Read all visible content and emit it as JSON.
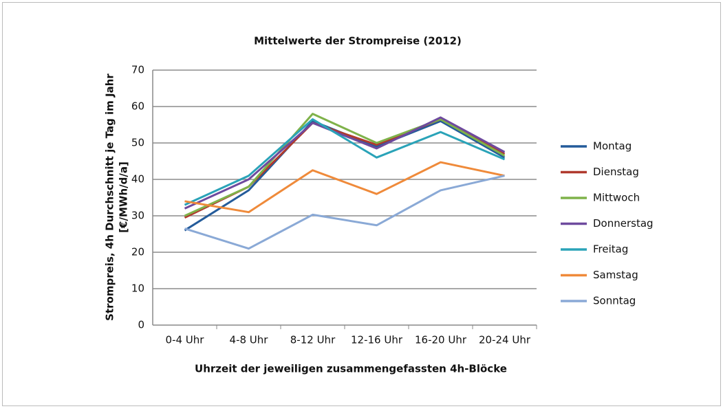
{
  "chart_data": {
    "type": "line",
    "title": "Mittelwerte der Strompreise (2012)",
    "x_label": "Uhrzeit der jeweiligen zusammengefassten 4h-Blöcke",
    "y_label": [
      "Strompreis,  4h Durchschnitt  je Tag im Jahr",
      "[€/MWh/d/a]"
    ],
    "categories": [
      "0-4 Uhr",
      "4-8 Uhr",
      "8-12 Uhr",
      "12-16 Uhr",
      "16-20 Uhr",
      "20-24 Uhr"
    ],
    "series": [
      {
        "name": "Montag",
        "color": "#245b9a",
        "values": [
          26,
          37,
          56,
          49,
          56,
          46
        ]
      },
      {
        "name": "Dienstag",
        "color": "#b03a2e",
        "values": [
          29.5,
          38,
          55.5,
          49.5,
          56.5,
          47
        ]
      },
      {
        "name": "Mittwoch",
        "color": "#7fb24a",
        "values": [
          30,
          38,
          58,
          50,
          56.5,
          46.5
        ]
      },
      {
        "name": "Donnerstag",
        "color": "#6e4a9e",
        "values": [
          32,
          40,
          55.5,
          48.5,
          57,
          47.5
        ]
      },
      {
        "name": "Freitag",
        "color": "#2aa3b8",
        "values": [
          33,
          41,
          56.5,
          46,
          53,
          45.5
        ]
      },
      {
        "name": "Samstag",
        "color": "#ef8a3a",
        "values": [
          34,
          31,
          42.5,
          36,
          44.7,
          41
        ]
      },
      {
        "name": "Sonntag",
        "color": "#8aa9d6",
        "values": [
          26.5,
          21,
          30.3,
          27.4,
          37,
          41
        ]
      }
    ],
    "ylim": [
      0,
      70
    ],
    "yticks": [
      0,
      10,
      20,
      30,
      40,
      50,
      60,
      70
    ],
    "grid": true,
    "legend": "right"
  }
}
